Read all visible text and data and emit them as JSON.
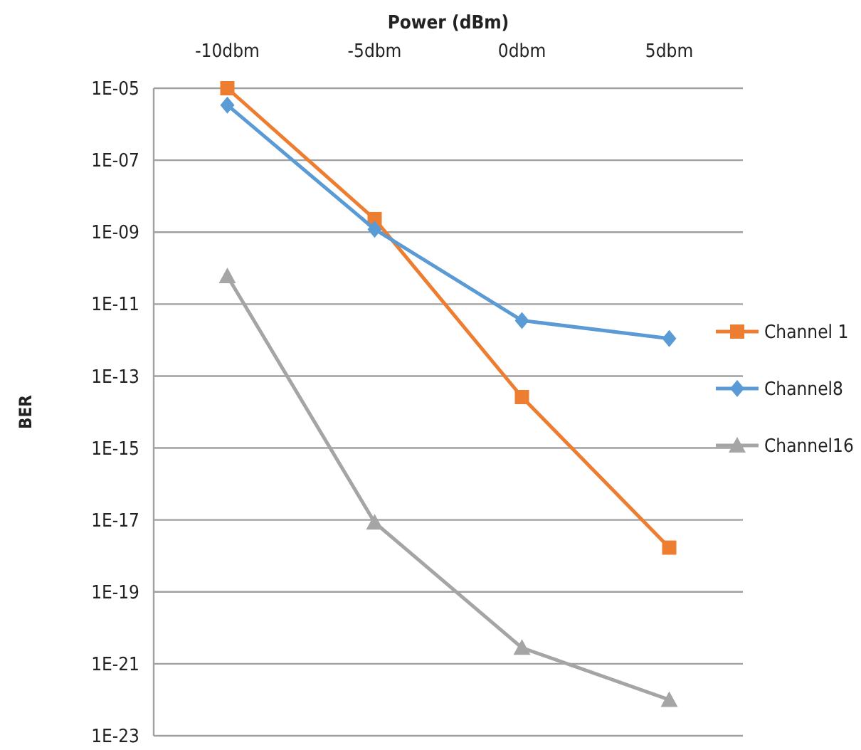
{
  "chart_data": {
    "type": "line",
    "xlabel": "Power (dBm)",
    "ylabel": "BER",
    "categories": [
      "-10dbm",
      "-5dbm",
      "0dbm",
      "5dbm"
    ],
    "series": [
      {
        "name": "Channel 1",
        "color": "#ed7d31",
        "marker": "square",
        "values": [
          1e-05,
          2.3e-09,
          2.6e-14,
          1.7e-18
        ]
      },
      {
        "name": "Channel8",
        "color": "#5b9bd5",
        "marker": "diamond",
        "values": [
          3.4e-06,
          1.2e-09,
          3.5e-12,
          1.1e-12
        ]
      },
      {
        "name": "Channel16",
        "color": "#a5a5a5",
        "marker": "triangle",
        "values": [
          6e-11,
          8.5e-18,
          2.8e-21,
          1e-22
        ]
      }
    ],
    "log": "y",
    "ylim": [
      1e-23,
      1e-05
    ],
    "yticks": [
      {
        "value": 1e-05,
        "label": "1E-05"
      },
      {
        "value": 1e-07,
        "label": "1E-07"
      },
      {
        "value": 1e-09,
        "label": "1E-09"
      },
      {
        "value": 1e-11,
        "label": "1E-11"
      },
      {
        "value": 1e-13,
        "label": "1E-13"
      },
      {
        "value": 1e-15,
        "label": "1E-15"
      },
      {
        "value": 1e-17,
        "label": "1E-17"
      },
      {
        "value": 1e-19,
        "label": "1E-19"
      },
      {
        "value": 1e-21,
        "label": "1E-21"
      },
      {
        "value": 1e-23,
        "label": "1E-23"
      }
    ],
    "grid": "y",
    "legend": "right"
  }
}
